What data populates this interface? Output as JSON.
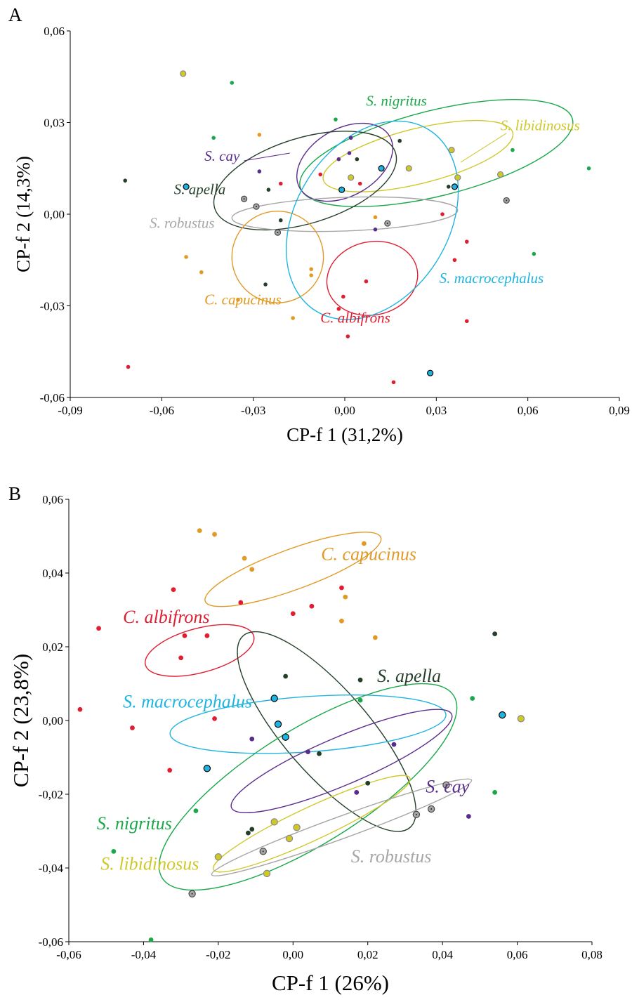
{
  "colors": {
    "S. nigritus": "#1aa84a",
    "S. libidinosus": "#cfc82a",
    "S. cay": "#5a2c8c",
    "S. apella": "#25402a",
    "S. robustus": "#a6a6a6",
    "C. capucinus": "#e09a25",
    "C. albifrons": "#e01e32",
    "S. macrocephalus": "#1fb4e0"
  },
  "chart_data": [
    {
      "type": "scatter",
      "panel": "A",
      "xlabel": "CP-f 1 (31,2%)",
      "ylabel": "CP-f 2 (14,3%)",
      "xlim": [
        -0.09,
        0.09
      ],
      "ylim": [
        -0.06,
        0.06
      ],
      "xticks": [
        -0.09,
        -0.06,
        -0.03,
        0,
        0.03,
        0.06,
        0.09
      ],
      "yticks": [
        -0.06,
        -0.03,
        0,
        0.03,
        0.06
      ],
      "xtick_labels": [
        "-0,09",
        "-0,06",
        "-0,03",
        "0,00",
        "0,03",
        "0,06",
        "0,09"
      ],
      "ytick_labels": [
        "-0,06",
        "-0,03",
        "0,00",
        "0,03",
        "0,06"
      ],
      "series": [
        {
          "name": "S. nigritus",
          "points": [
            [
              -0.037,
              0.043
            ],
            [
              -0.043,
              0.025
            ],
            [
              -0.003,
              0.031
            ],
            [
              0.055,
              0.021
            ],
            [
              0.08,
              0.015
            ],
            [
              0.062,
              -0.013
            ]
          ],
          "ellipse": {
            "cx": 0.03,
            "cy": 0.02,
            "rx": 0.046,
            "ry": 0.014,
            "angle": -14
          }
        },
        {
          "name": "S. libidinosus",
          "points": [
            [
              -0.053,
              0.046
            ],
            [
              0.035,
              0.021
            ],
            [
              0.021,
              0.015
            ],
            [
              0.037,
              0.012
            ],
            [
              0.051,
              0.013
            ],
            [
              0.002,
              0.012
            ]
          ],
          "ellipse": {
            "cx": 0.024,
            "cy": 0.019,
            "rx": 0.032,
            "ry": 0.009,
            "angle": -14
          }
        },
        {
          "name": "S. cay",
          "points": [
            [
              0.002,
              0.025
            ],
            [
              0.0015,
              0.02
            ],
            [
              -0.002,
              0.018
            ],
            [
              0.01,
              -0.005
            ],
            [
              -0.028,
              0.014
            ]
          ],
          "ellipse": {
            "cx": 0.0,
            "cy": 0.017,
            "rx": 0.017,
            "ry": 0.011,
            "angle": -30
          }
        },
        {
          "name": "S. apella",
          "points": [
            [
              -0.072,
              0.011
            ],
            [
              -0.025,
              0.008
            ],
            [
              0.018,
              0.024
            ],
            [
              0.034,
              0.009
            ],
            [
              0.004,
              0.018
            ],
            [
              -0.021,
              -0.002
            ],
            [
              -0.026,
              -0.023
            ]
          ],
          "ellipse": {
            "cx": -0.013,
            "cy": 0.011,
            "rx": 0.031,
            "ry": 0.014,
            "angle": -17
          }
        },
        {
          "name": "S. robustus",
          "points": [
            [
              -0.033,
              0.005
            ],
            [
              -0.029,
              0.0025
            ],
            [
              -0.022,
              -0.006
            ],
            [
              0.014,
              -0.003
            ],
            [
              0.053,
              0.0045
            ]
          ],
          "ellipse": {
            "cx": 0.0,
            "cy": 0.0,
            "rx": 0.037,
            "ry": 0.0055,
            "angle": -2
          }
        },
        {
          "name": "C. capucinus",
          "points": [
            [
              -0.028,
              0.026
            ],
            [
              -0.052,
              -0.014
            ],
            [
              -0.047,
              -0.019
            ],
            [
              -0.035,
              -0.028
            ],
            [
              -0.011,
              -0.018
            ],
            [
              -0.011,
              -0.02
            ],
            [
              -0.017,
              -0.034
            ],
            [
              0.01,
              -0.001
            ]
          ],
          "ellipse": {
            "cx": -0.022,
            "cy": -0.014,
            "rx": 0.015,
            "ry": 0.015,
            "angle": 0
          }
        },
        {
          "name": "C. albifrons",
          "points": [
            [
              -0.021,
              0.01
            ],
            [
              -0.008,
              0.013
            ],
            [
              0.005,
              0.01
            ],
            [
              0.032,
              0.0
            ],
            [
              0.04,
              -0.009
            ],
            [
              0.036,
              -0.015
            ],
            [
              0.007,
              -0.022
            ],
            [
              -0.0005,
              -0.027
            ],
            [
              -0.002,
              -0.031
            ],
            [
              0.001,
              -0.04
            ],
            [
              0.04,
              -0.035
            ],
            [
              0.016,
              -0.055
            ],
            [
              -0.071,
              -0.05
            ]
          ],
          "ellipse": {
            "cx": 0.009,
            "cy": -0.021,
            "rx": 0.015,
            "ry": 0.012,
            "angle": -12
          }
        },
        {
          "name": "S. macrocephalus",
          "points": [
            [
              -0.052,
              0.009
            ],
            [
              0.012,
              0.015
            ],
            [
              -0.001,
              0.008
            ],
            [
              0.036,
              0.009
            ],
            [
              0.028,
              -0.052
            ]
          ],
          "ellipse": {
            "cx": 0.009,
            "cy": -0.002,
            "rx": 0.035,
            "ry": 0.025,
            "angle": -58
          }
        }
      ],
      "labels": [
        {
          "text": "S. nigritus",
          "series": "S. nigritus",
          "x": 0.007,
          "y": 0.0355,
          "size": 21
        },
        {
          "text": "S. libidinosus",
          "series": "S. libidinosus",
          "x": 0.051,
          "y": 0.0275,
          "size": 21
        },
        {
          "text": "S. cay",
          "series": "S. cay",
          "x": -0.046,
          "y": 0.0175,
          "size": 21
        },
        {
          "text": "S. apella",
          "series": "S. apella",
          "x": -0.056,
          "y": 0.0065,
          "size": 21
        },
        {
          "text": "S. robustus",
          "series": "S. robustus",
          "x": -0.064,
          "y": -0.0045,
          "size": 21
        },
        {
          "text": "C. capucinus",
          "series": "C. capucinus",
          "x": -0.046,
          "y": -0.0295,
          "size": 21
        },
        {
          "text": "C. albifrons",
          "series": "C. albifrons",
          "x": -0.008,
          "y": -0.0355,
          "size": 21
        },
        {
          "text": "S. macrocephalus",
          "series": "S. macrocephalus",
          "x": 0.031,
          "y": -0.0225,
          "size": 21
        }
      ],
      "leaders": [
        {
          "series": "S. cay",
          "x1": -0.033,
          "y1": 0.0175,
          "x2": -0.018,
          "y2": 0.02
        },
        {
          "series": "S. libidinosus",
          "x1": 0.053,
          "y1": 0.0265,
          "x2": 0.038,
          "y2": 0.017
        }
      ]
    },
    {
      "type": "scatter",
      "panel": "B",
      "xlabel": "CP-f 1 (26%)",
      "ylabel": "CP-f 2 (23,8%)",
      "xlim": [
        -0.06,
        0.08
      ],
      "ylim": [
        -0.06,
        0.06
      ],
      "xticks": [
        -0.06,
        -0.04,
        -0.02,
        0,
        0.02,
        0.04,
        0.06,
        0.08
      ],
      "yticks": [
        -0.06,
        -0.04,
        -0.02,
        0,
        0.02,
        0.04,
        0.06
      ],
      "xtick_labels": [
        "-0,06",
        "-0,04",
        "-0,02",
        "0,00",
        "0,02",
        "0,04",
        "0,06",
        "0,08"
      ],
      "ytick_labels": [
        "-0,06",
        "-0,04",
        "-0,02",
        "0,00",
        "0,02",
        "0,04",
        "0,06"
      ],
      "series": [
        {
          "name": "C. capucinus",
          "points": [
            [
              -0.025,
              0.0515
            ],
            [
              -0.021,
              0.0505
            ],
            [
              -0.013,
              0.044
            ],
            [
              -0.011,
              0.041
            ],
            [
              0.019,
              0.048
            ],
            [
              0.014,
              0.0335
            ],
            [
              0.013,
              0.027
            ],
            [
              0.022,
              0.0225
            ]
          ],
          "ellipse": {
            "cx": 0.0,
            "cy": 0.041,
            "rx": 0.025,
            "ry": 0.0055,
            "angle": -20
          }
        },
        {
          "name": "C. albifrons",
          "points": [
            [
              -0.052,
              0.025
            ],
            [
              -0.032,
              0.0355
            ],
            [
              -0.014,
              0.032
            ],
            [
              0.013,
              0.036
            ],
            [
              0.005,
              0.031
            ],
            [
              0.0,
              0.029
            ],
            [
              -0.029,
              0.023
            ],
            [
              -0.023,
              0.023
            ],
            [
              -0.03,
              0.017
            ],
            [
              -0.057,
              0.003
            ],
            [
              -0.043,
              -0.002
            ],
            [
              -0.021,
              0.0005
            ],
            [
              -0.033,
              -0.0135
            ]
          ],
          "ellipse": {
            "cx": -0.025,
            "cy": 0.019,
            "rx": 0.015,
            "ry": 0.006,
            "angle": -15
          }
        },
        {
          "name": "S. apella",
          "points": [
            [
              -0.002,
              0.012
            ],
            [
              0.018,
              0.011
            ],
            [
              0.054,
              0.0235
            ],
            [
              0.007,
              -0.009
            ],
            [
              0.02,
              -0.017
            ],
            [
              -0.012,
              -0.0305
            ],
            [
              -0.011,
              -0.0295
            ]
          ],
          "ellipse": {
            "cx": 0.009,
            "cy": -0.003,
            "rx": 0.034,
            "ry": 0.0115,
            "angle": 49
          }
        },
        {
          "name": "S. macrocephalus",
          "points": [
            [
              -0.005,
              0.006
            ],
            [
              -0.004,
              -0.001
            ],
            [
              -0.002,
              -0.0045
            ],
            [
              0.056,
              0.0015
            ],
            [
              -0.023,
              -0.013
            ]
          ],
          "ellipse": {
            "cx": 0.004,
            "cy": -0.001,
            "rx": 0.037,
            "ry": 0.0075,
            "angle": -4
          }
        },
        {
          "name": "S. cay",
          "points": [
            [
              -0.011,
              -0.005
            ],
            [
              0.004,
              -0.0085
            ],
            [
              0.027,
              -0.0065
            ],
            [
              0.017,
              -0.0195
            ],
            [
              0.047,
              -0.026
            ]
          ],
          "ellipse": {
            "cx": 0.013,
            "cy": -0.011,
            "rx": 0.032,
            "ry": 0.0065,
            "angle": -23
          }
        },
        {
          "name": "S. nigritus",
          "points": [
            [
              0.018,
              0.0055
            ],
            [
              0.048,
              0.006
            ],
            [
              0.054,
              -0.0195
            ],
            [
              -0.026,
              -0.0245
            ],
            [
              -0.048,
              -0.0355
            ],
            [
              -0.038,
              -0.0595
            ]
          ],
          "ellipse": {
            "cx": 0.004,
            "cy": -0.018,
            "rx": 0.046,
            "ry": 0.0155,
            "angle": -32
          }
        },
        {
          "name": "S. libidinosus",
          "points": [
            [
              -0.005,
              -0.0275
            ],
            [
              0.001,
              -0.029
            ],
            [
              -0.001,
              -0.032
            ],
            [
              -0.02,
              -0.037
            ],
            [
              -0.007,
              -0.0415
            ],
            [
              0.061,
              0.0005
            ]
          ],
          "ellipse": {
            "cx": 0.005,
            "cy": -0.028,
            "rx": 0.029,
            "ry": 0.0045,
            "angle": -25
          }
        },
        {
          "name": "S. robustus",
          "points": [
            [
              -0.008,
              -0.0355
            ],
            [
              0.033,
              -0.0255
            ],
            [
              0.037,
              -0.024
            ],
            [
              0.041,
              -0.0175
            ],
            [
              -0.027,
              -0.047
            ]
          ],
          "ellipse": {
            "cx": 0.013,
            "cy": -0.029,
            "rx": 0.037,
            "ry": 0.003,
            "angle": -20
          }
        }
      ],
      "labels": [
        {
          "text": "C. capucinus",
          "series": "C. capucinus",
          "x": 0.0075,
          "y": 0.0435,
          "size": 26
        },
        {
          "text": "C. albifrons",
          "series": "C. albifrons",
          "x": -0.0455,
          "y": 0.0265,
          "size": 26
        },
        {
          "text": "S. apella",
          "series": "S. apella",
          "x": 0.0225,
          "y": 0.0105,
          "size": 26
        },
        {
          "text": "S. macrocephalus",
          "series": "S. macrocephalus",
          "x": -0.0455,
          "y": 0.0035,
          "size": 26
        },
        {
          "text": "S. cay",
          "series": "S. cay",
          "x": 0.0355,
          "y": -0.0195,
          "size": 26
        },
        {
          "text": "S. nigritus",
          "series": "S. nigritus",
          "x": -0.0525,
          "y": -0.0295,
          "size": 26
        },
        {
          "text": "S. robustus",
          "series": "S. robustus",
          "x": 0.0155,
          "y": -0.0385,
          "size": 26
        },
        {
          "text": "S. libidinosus",
          "series": "S. libidinosus",
          "x": -0.0515,
          "y": -0.0405,
          "size": 26
        }
      ],
      "leaders": []
    }
  ]
}
